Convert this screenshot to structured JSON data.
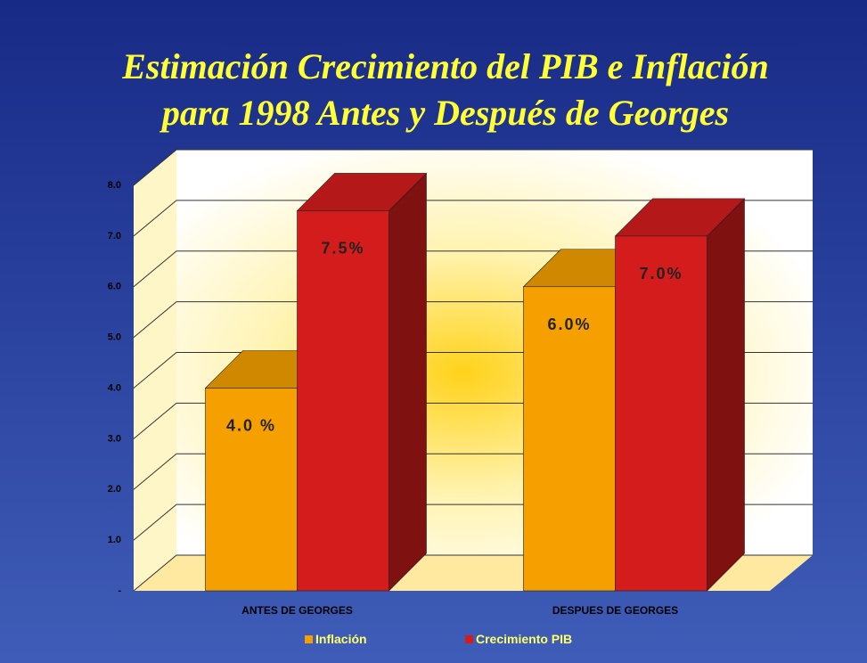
{
  "chart_data": {
    "type": "bar3d",
    "title": "Estimación Crecimiento del PIB e Inflación",
    "subtitle": "para 1998 Antes y Después de Georges",
    "categories": [
      "ANTES DE GEORGES",
      "DESPUES DE GEORGES"
    ],
    "series": [
      {
        "name": "Inflación",
        "color": "#f5a000",
        "values": [
          4,
          6
        ],
        "value_labels": [
          "4.0 %",
          "6.0%"
        ]
      },
      {
        "name": "Crecimiento PIB",
        "color": "#d41c1c",
        "values": [
          7.5,
          7
        ],
        "value_labels": [
          "7.5%",
          "7.0%"
        ]
      }
    ],
    "ylim": [
      0,
      8
    ],
    "yticks": [
      {
        "value": 0,
        "label": "-"
      },
      {
        "value": 1,
        "label": "1.0"
      },
      {
        "value": 2,
        "label": "2.0"
      },
      {
        "value": 3,
        "label": "3.0"
      },
      {
        "value": 4,
        "label": "4.0"
      },
      {
        "value": 5,
        "label": "5.0"
      },
      {
        "value": 6,
        "label": "6.0"
      },
      {
        "value": 7,
        "label": "7.0"
      },
      {
        "value": 8,
        "label": "8.0"
      }
    ],
    "grid": true
  }
}
